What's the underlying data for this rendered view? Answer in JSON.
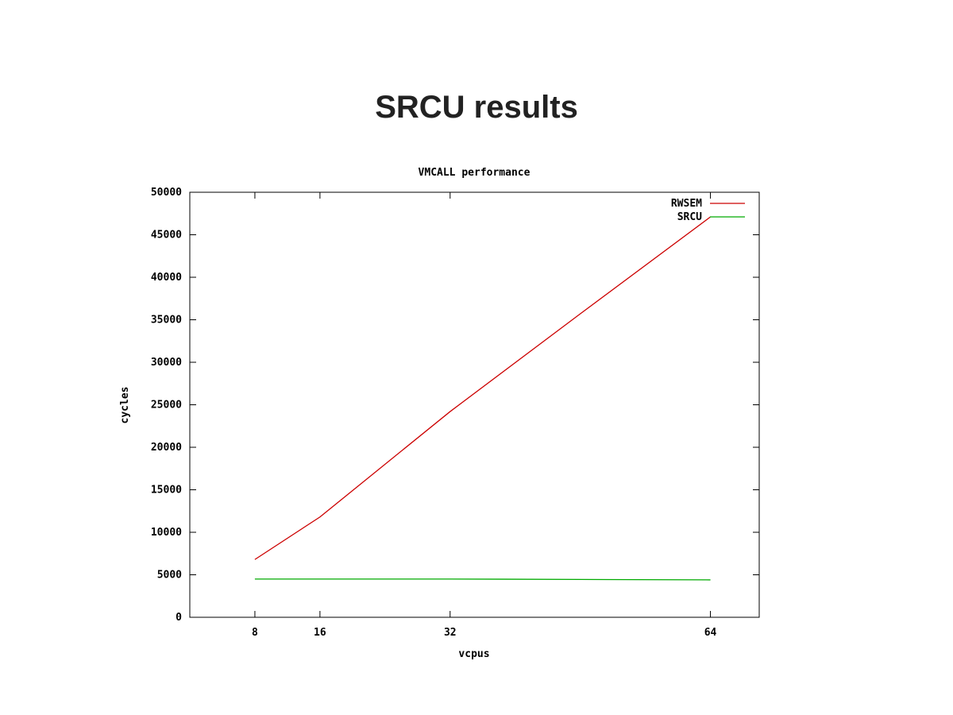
{
  "slide": {
    "title": "SRCU results"
  },
  "chart_data": {
    "type": "line",
    "title": "VMCALL performance",
    "xlabel": "vcpus",
    "ylabel": "cycles",
    "xlim": [
      0,
      70
    ],
    "ylim": [
      0,
      50000
    ],
    "xticks": [
      8,
      16,
      32,
      64
    ],
    "yticks": [
      0,
      5000,
      10000,
      15000,
      20000,
      25000,
      30000,
      35000,
      40000,
      45000,
      50000
    ],
    "grid": false,
    "legend": "top-right",
    "x": [
      8,
      16,
      32,
      48,
      64
    ],
    "series": [
      {
        "name": "RWSEM",
        "color": "#cc0000",
        "values": [
          6800,
          11800,
          24200,
          35700,
          47100
        ]
      },
      {
        "name": "SRCU",
        "color": "#00aa00",
        "values": [
          4500,
          4500,
          4500,
          4450,
          4400
        ]
      }
    ]
  }
}
